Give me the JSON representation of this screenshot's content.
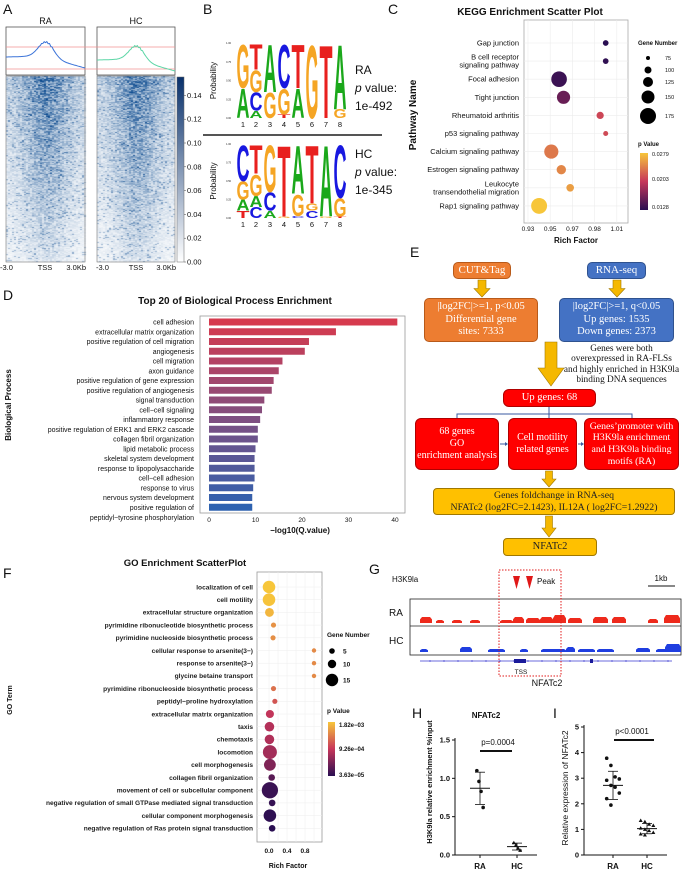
{
  "panel_labels": {
    "A": "A",
    "B": "B",
    "C": "C",
    "D": "D",
    "E": "E",
    "F": "F",
    "G": "G",
    "H": "H",
    "I": "I"
  },
  "chart_data": [
    {
      "id": "A",
      "type": "heatmap",
      "columns": [
        "RA",
        "HC"
      ],
      "xticks": [
        "-3.0",
        "TSS",
        "3.0Kb"
      ],
      "colorbar": {
        "ticks": [
          "0.00",
          "0.02",
          "0.04",
          "0.06",
          "0.08",
          "0.10",
          "0.12",
          "0.14"
        ],
        "range": [
          0,
          0.15
        ],
        "colors": [
          "#ffffff",
          "#08306b"
        ]
      },
      "profile_colors": {
        "RA": "#3b73d8",
        "HC": "#5cd6a6"
      }
    },
    {
      "id": "B",
      "type": "sequence-logo",
      "ylabel": "Probability",
      "yticks": [
        "1.00",
        "0.75",
        "0.50",
        "0.25",
        "0.00"
      ],
      "positions": [
        "1",
        "2",
        "3",
        "4",
        "5",
        "6",
        "7",
        "8"
      ],
      "colors": {
        "A": "#1ba81b",
        "C": "#1818e0",
        "G": "#f5a524",
        "T": "#e8201e"
      },
      "motifs": [
        {
          "group": "RA",
          "p_label": "p",
          "p_suffix": " value:",
          "p_value": "1e-492",
          "columns": [
            [
              [
                "A",
                0.4
              ],
              [
                "G",
                0.6
              ]
            ],
            [
              [
                "A",
                0.1
              ],
              [
                "C",
                0.25
              ],
              [
                "G",
                0.3
              ],
              [
                "T",
                0.35
              ]
            ],
            [
              [
                "G",
                0.35
              ],
              [
                "A",
                0.65
              ]
            ],
            [
              [
                "T",
                0.05
              ],
              [
                "G",
                0.35
              ],
              [
                "C",
                0.6
              ]
            ],
            [
              [
                "A",
                0.4
              ],
              [
                "T",
                0.6
              ]
            ],
            [
              [
                "G",
                1.0
              ]
            ],
            [
              [
                "T",
                1.0
              ]
            ],
            [
              [
                "G",
                0.12
              ],
              [
                "A",
                0.88
              ]
            ]
          ]
        },
        {
          "group": "HC",
          "p_label": "p",
          "p_suffix": " value:",
          "p_value": "1e-345",
          "columns": [
            [
              [
                "T",
                0.1
              ],
              [
                "A",
                0.15
              ],
              [
                "G",
                0.25
              ],
              [
                "C",
                0.5
              ]
            ],
            [
              [
                "C",
                0.15
              ],
              [
                "A",
                0.15
              ],
              [
                "G",
                0.3
              ],
              [
                "T",
                0.4
              ]
            ],
            [
              [
                "A",
                0.1
              ],
              [
                "C",
                0.25
              ],
              [
                "G",
                0.65
              ]
            ],
            [
              [
                "G",
                0.02
              ],
              [
                "T",
                0.98
              ]
            ],
            [
              [
                "C",
                0.03
              ],
              [
                "G",
                0.3
              ],
              [
                "A",
                0.67
              ]
            ],
            [
              [
                "C",
                0.1
              ],
              [
                "G",
                0.1
              ],
              [
                "T",
                0.8
              ]
            ],
            [
              [
                "G",
                0.02
              ],
              [
                "A",
                0.98
              ]
            ],
            [
              [
                "T",
                0.02
              ],
              [
                "G",
                0.25
              ],
              [
                "C",
                0.73
              ]
            ]
          ]
        }
      ]
    },
    {
      "id": "C",
      "type": "scatter",
      "title": "KEGG Enrichment Scatter Plot",
      "xlabel": "Rich Factor",
      "ylabel": "Pathway Name",
      "xticks": [
        "0.93",
        "0.95",
        "0.97",
        "0.98",
        "1.01"
      ],
      "grid": true,
      "categories": [
        [
          "Gap junction"
        ],
        [
          "B cell receptor",
          "signaling pathway"
        ],
        [
          "Focal adhesion"
        ],
        [
          "Tight junction"
        ],
        [
          "Rheumatoid arthritis"
        ],
        [
          "p53 signaling pathway"
        ],
        [
          "Calcium signaling pathway"
        ],
        [
          "Estrogen signaling pathway"
        ],
        [
          "Leukocyte",
          "transendothelial migration"
        ],
        [
          "Rap1 signaling pathway"
        ]
      ],
      "rich_factor": [
        1.0,
        1.0,
        0.958,
        0.962,
        0.995,
        1.0,
        0.951,
        0.96,
        0.968,
        0.94
      ],
      "gene_number": [
        72,
        72,
        175,
        150,
        88,
        65,
        160,
        110,
        92,
        178
      ],
      "p_value": [
        0.0128,
        0.0131,
        0.0136,
        0.0158,
        0.0212,
        0.0214,
        0.0238,
        0.0246,
        0.0258,
        0.0279
      ],
      "size_legend": {
        "title": "Gene Number",
        "values": [
          "75",
          "100",
          "125",
          "150",
          "175"
        ]
      },
      "color_legend": {
        "title": "p Value",
        "labels": [
          "0.0279",
          "0.0203",
          "0.0128"
        ],
        "range": [
          0.0128,
          0.0279
        ]
      },
      "legend_position": "right"
    },
    {
      "id": "D",
      "type": "bar",
      "orientation": "horizontal",
      "title": "Top 20 of Biological Process Enrichment",
      "xlabel": "−log10(Q.value)",
      "ylabel": "Biological Process",
      "xticks": [
        "0",
        "10",
        "20",
        "30",
        "40"
      ],
      "xlim": [
        0,
        42
      ],
      "categories": [
        [
          "cell adhesion"
        ],
        [
          "extracellular matrix organization"
        ],
        [
          "positive regulation of cell migration"
        ],
        [
          "angiogenesis"
        ],
        [
          "cell migration"
        ],
        [
          "axon guidance"
        ],
        [
          "positive regulation of gene expression"
        ],
        [
          "positive regulation of angiogenesis"
        ],
        [
          "signal transduction"
        ],
        [
          "cell−cell signaling"
        ],
        [
          "inflammatory response"
        ],
        [
          "positive regulation of ERK1 and ERK2 cascade"
        ],
        [
          "collagen fibril organization"
        ],
        [
          "lipid metabolic process"
        ],
        [
          "skeletal system development"
        ],
        [
          "response to lipopolysaccharide"
        ],
        [
          "cell−cell adhesion"
        ],
        [
          "response to virus"
        ],
        [
          "nervous system development"
        ],
        [
          "positive regulation of",
          "peptidyl−tyrosine phosphorylation"
        ]
      ],
      "values": [
        40.5,
        27.3,
        21.5,
        20.6,
        15.8,
        15.0,
        13.9,
        13.5,
        11.9,
        11.4,
        11.0,
        10.5,
        10.5,
        10.0,
        9.8,
        9.8,
        9.8,
        9.5,
        9.3,
        9.3
      ],
      "colors": [
        "#d63a4e",
        "#2e62b0"
      ]
    },
    {
      "id": "F",
      "type": "scatter",
      "title": "GO Enrichment ScatterPlot",
      "xlabel": "Rich Factor",
      "ylabel": "GO Term",
      "xticks": [
        "0.0",
        "0.4",
        "0.8"
      ],
      "grid": true,
      "categories": [
        "localization of cell",
        "cell motility",
        "extracellular structure organization",
        "pyrimidine ribonucleotide biosynthetic process",
        "pyrimidine nucleoside biosynthetic process",
        "cellular response to arsenite(3−)",
        "response to arsenite(3−)",
        "glycine betaine transport",
        "pyrimidine ribonucleoside biosynthetic process",
        "peptidyl−proline hydroxylation",
        "extracellular matrix organization",
        "taxis",
        "chemotaxis",
        "locomotion",
        "cell morphogenesis",
        "collagen fibril organization",
        "movement of cell or subcellular component",
        "negative regulation of small GTPase mediated signal transduction",
        "cellular component morphogenesis",
        "negative regulation of Ras protein signal transduction"
      ],
      "rich_factor": [
        0.0,
        0.0,
        0.01,
        0.1,
        0.09,
        1.0,
        1.0,
        1.0,
        0.1,
        0.13,
        0.02,
        0.01,
        0.01,
        0.02,
        0.02,
        0.06,
        0.02,
        0.07,
        0.02,
        0.07
      ],
      "gene_number": [
        15,
        15,
        10,
        5,
        5,
        4,
        4,
        4,
        5,
        5,
        9,
        11,
        11,
        17,
        14,
        7,
        20,
        7,
        15,
        7
      ],
      "p_value": [
        0.00182,
        0.0018,
        0.00172,
        0.0015,
        0.00148,
        0.00145,
        0.00145,
        0.00145,
        0.0013,
        0.00112,
        0.0009,
        0.00082,
        0.0008,
        0.00072,
        0.00052,
        0.0003,
        0.00012,
        0.0001,
        6e-05,
        3.63e-05
      ],
      "size_legend": {
        "title": "Gene Number",
        "values": [
          "5",
          "10",
          "15"
        ]
      },
      "color_legend": {
        "title": "p Value",
        "labels": [
          "1.82e−03",
          "9.26e−04",
          "3.63e−05"
        ],
        "range": [
          3.63e-05,
          0.00182
        ]
      },
      "legend_position": "right"
    },
    {
      "id": "G",
      "type": "genome-track",
      "mark": "H3K9la",
      "peak_label": "Peak",
      "scale_label": "1kb",
      "tracks": [
        {
          "name": "RA",
          "color": "#ee2a1c"
        },
        {
          "name": "HC",
          "color": "#1f3ee0"
        }
      ],
      "tss_label": "TSS",
      "gene": "NFATc2"
    },
    {
      "id": "H",
      "type": "dot-plot",
      "title": "NFATc2",
      "ylabel": "H3K9la relative enrichment %input",
      "yticks": [
        "0.0",
        "0.5",
        "1.0",
        "1.5"
      ],
      "ylim": [
        0,
        1.5
      ],
      "categories": [
        "RA",
        "HC"
      ],
      "values": [
        [
          1.1,
          0.96,
          0.83,
          0.62
        ],
        [
          0.16,
          0.13,
          0.09,
          0.06
        ]
      ],
      "mean": [
        0.87,
        0.11
      ],
      "sd": [
        0.21,
        0.045
      ],
      "annotation": "p=0.0004"
    },
    {
      "id": "I",
      "type": "dot-plot",
      "ylabel": "Relative expression of NFATc2",
      "yticks": [
        "0",
        "1",
        "2",
        "3",
        "4",
        "5"
      ],
      "ylim": [
        0,
        5
      ],
      "categories": [
        "RA",
        "HC"
      ],
      "values": [
        [
          3.78,
          3.5,
          3.05,
          2.97,
          2.92,
          2.72,
          2.65,
          2.42,
          2.2,
          1.95
        ],
        [
          1.35,
          1.3,
          1.2,
          1.15,
          1.05,
          1.0,
          0.95,
          0.88,
          0.82,
          0.78
        ]
      ],
      "mean": [
        2.72,
        1.03
      ],
      "sd": [
        0.55,
        0.2
      ],
      "annotation": "p<0.0001"
    }
  ],
  "flowchart": {
    "cut_tag": "CUT&Tag",
    "rna_seq": "RNA-seq",
    "cut_tag_result": "|log2FC|>=1, p<0.05\nDifferential gene\nsites: 7333",
    "rna_seq_result": "|log2FC|>=1, q<0.05\nUp genes: 1535\nDown genes: 2373",
    "overlap_note": "Genes were both\noverexpressed in RA-FLSs\nand highly enriched in H3K9la\nbinding DNA sequences",
    "up_genes": "Up genes: 68",
    "go_analysis": "68 genes\nGO\nenrichment analysis",
    "cell_motility": "Cell motility\nrelated genes",
    "promoter": "Genes’promoter with\nH3K9la enrichment\nand H3K9la binding\nmotifs (RA)",
    "foldchange": "Genes foldchange in RNA-seq\nNFATc2 (log2FC=2.1423), IL12A ( log2FC=1.2922)",
    "final": "NFATc2"
  }
}
